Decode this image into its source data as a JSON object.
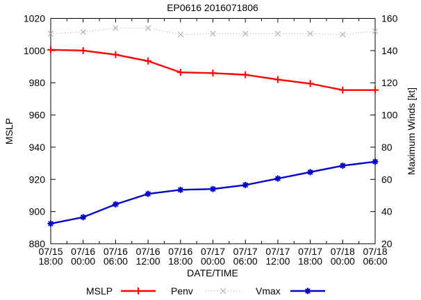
{
  "chart_data": {
    "type": "line",
    "title": "EP0616 2016071806",
    "xlabel": "DATE/TIME",
    "ylabel_left": "MSLP",
    "ylabel_right": "Maximum Winds [kt]",
    "ylim_left": [
      880,
      1020
    ],
    "ylim_right": [
      20,
      160
    ],
    "ytick_step": 20,
    "grid": false,
    "legend_position": "bottom-center",
    "frame_color": "#000000",
    "categories": [
      "07/15 18:00",
      "07/16 00:00",
      "07/16 06:00",
      "07/16 12:00",
      "07/16 18:00",
      "07/17 00:00",
      "07/17 06:00",
      "07/17 12:00",
      "07/17 18:00",
      "07/18 00:00",
      "07/18 06:00"
    ],
    "series": [
      {
        "name": "MSLP",
        "axis": "left",
        "color": "#ff0000",
        "marker": "plus",
        "line": "solid",
        "values": [
          1000.5,
          1000,
          997.5,
          993.5,
          986.5,
          986,
          985,
          982,
          979.5,
          975.5,
          975.5
        ]
      },
      {
        "name": "Penv",
        "axis": "left",
        "color": "#b3b3b3",
        "marker": "cross",
        "line": "dotted",
        "values": [
          1010.5,
          1011.5,
          1014,
          1014,
          1010,
          1010.5,
          1010.5,
          1010.5,
          1010.5,
          1010,
          1012
        ]
      },
      {
        "name": "Vmax",
        "axis": "right",
        "color": "#0000cd",
        "marker": "asterisk",
        "line": "solid",
        "values": [
          32.5,
          36.5,
          44.5,
          51,
          53.5,
          54,
          56.5,
          60.5,
          64.5,
          68.5,
          71
        ]
      }
    ]
  }
}
